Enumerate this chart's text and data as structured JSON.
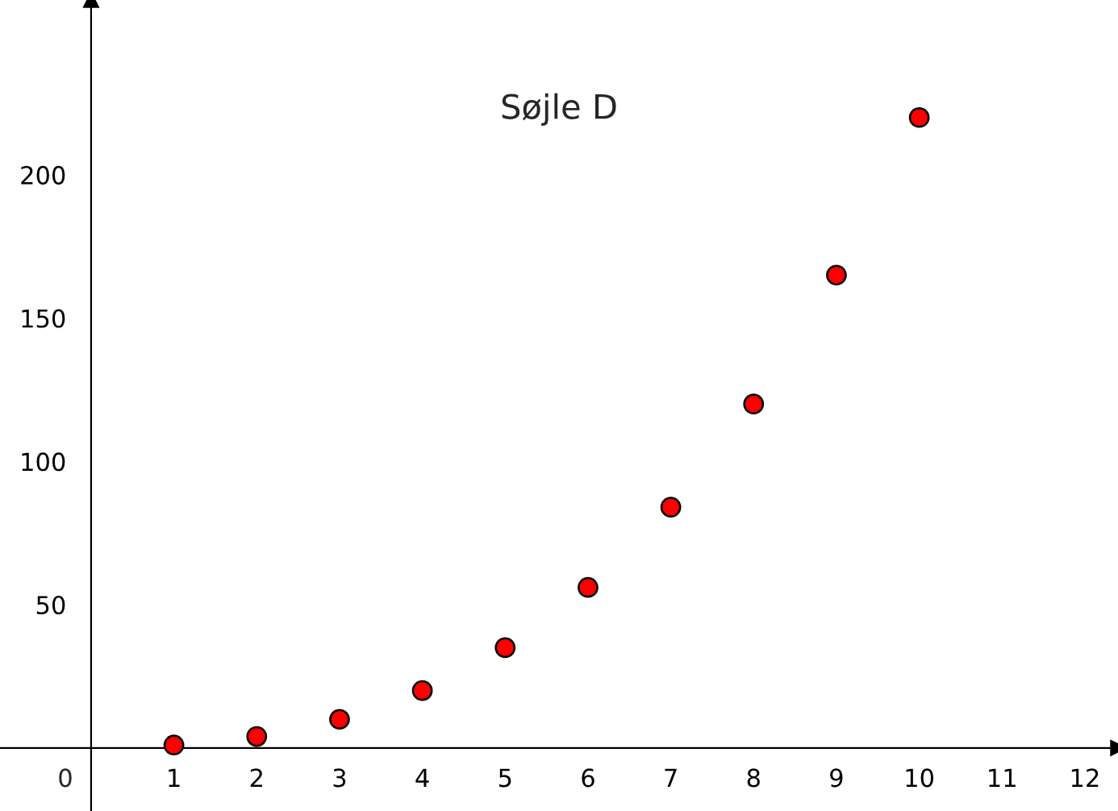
{
  "chart_data": {
    "type": "scatter",
    "title": "Søjle D",
    "x": [
      1,
      2,
      3,
      4,
      5,
      6,
      7,
      8,
      9,
      10
    ],
    "series": [
      {
        "color": "#ff0000",
        "values": [
          1,
          4,
          10,
          20,
          35,
          56,
          84,
          120,
          165,
          220
        ]
      }
    ],
    "xlim": [
      -1.1,
      12.4
    ],
    "ylim": [
      -22,
      261
    ],
    "annotations": [
      "0"
    ],
    "xticks": [
      1,
      2,
      3,
      4,
      5,
      6,
      7,
      8,
      9,
      10,
      11,
      12
    ],
    "yticks": [
      50,
      100,
      150,
      200
    ],
    "marker": "circle",
    "grid": false,
    "legend": false
  }
}
